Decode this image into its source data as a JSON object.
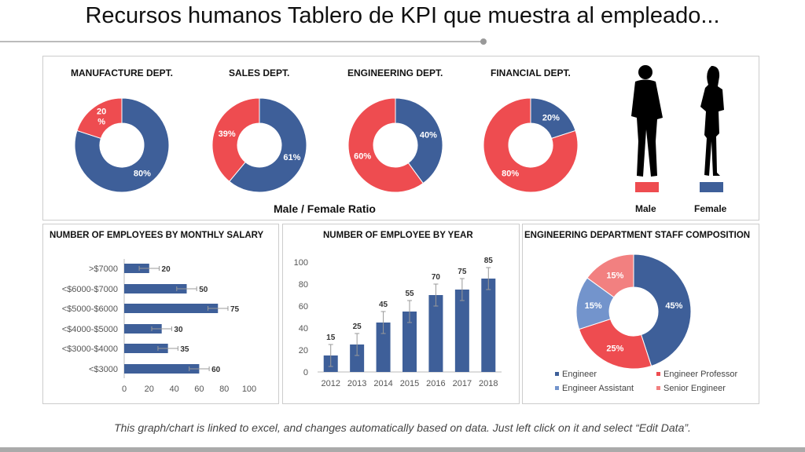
{
  "title": "Recursos humanos Tablero de KPI que muestra al empleado...",
  "footer": "This graph/chart is linked to excel, and changes automatically based on data. Just left click on it and select “Edit Data”.",
  "colors": {
    "male": "#3e5f99",
    "female": "#ee4c50",
    "assistant": "#7394cc",
    "senior": "#f28080"
  },
  "ratio": {
    "caption": "Male / Female Ratio",
    "legend": {
      "male": "Male",
      "female": "Female"
    },
    "icons": [
      "male-silhouette-icon",
      "female-silhouette-icon"
    ]
  },
  "chart_data": [
    {
      "type": "pie",
      "title": "MANUFACTURE DEPT.",
      "donut": true,
      "slices": [
        {
          "key": "male",
          "value": 80,
          "label": "80%"
        },
        {
          "key": "female",
          "value": 20,
          "label": "20 %"
        }
      ]
    },
    {
      "type": "pie",
      "title": "SALES DEPT.",
      "donut": true,
      "slices": [
        {
          "key": "male",
          "value": 61,
          "label": "61%"
        },
        {
          "key": "female",
          "value": 39,
          "label": "39%"
        }
      ]
    },
    {
      "type": "pie",
      "title": "ENGINEERING DEPT.",
      "donut": true,
      "slices": [
        {
          "key": "male",
          "value": 40,
          "label": "40%"
        },
        {
          "key": "female",
          "value": 60,
          "label": "60%"
        }
      ]
    },
    {
      "type": "pie",
      "title": "FINANCIAL DEPT.",
      "donut": true,
      "slices": [
        {
          "key": "male",
          "value": 20,
          "label": "20%"
        },
        {
          "key": "female",
          "value": 80,
          "label": "80%"
        }
      ]
    },
    {
      "type": "bar",
      "orientation": "horizontal",
      "title": "NUMBER OF EMPLOYEES BY MONTHLY SALARY",
      "categories": [
        ">$7000",
        "<$6000-$7000",
        "<$5000-$6000",
        "<$4000-$5000",
        "<$3000-$4000",
        "<$3000"
      ],
      "values": [
        20,
        50,
        75,
        30,
        35,
        60
      ],
      "error": 8,
      "xlim": [
        0,
        100
      ],
      "xticks": [
        0,
        20,
        40,
        60,
        80,
        100
      ],
      "grid": false
    },
    {
      "type": "bar",
      "title": "NUMBER OF EMPLOYEE BY YEAR",
      "categories": [
        "2012",
        "2013",
        "2014",
        "2015",
        "2016",
        "2017",
        "2018"
      ],
      "values": [
        15,
        25,
        45,
        55,
        70,
        75,
        85
      ],
      "error": 10,
      "ylim": [
        0,
        100
      ],
      "yticks": [
        0,
        20,
        40,
        60,
        80,
        100
      ],
      "grid": false
    },
    {
      "type": "pie",
      "title": "ENGINEERING DEPARTMENT STAFF COMPOSITION",
      "donut": true,
      "legend": "bottom",
      "slices": [
        {
          "name": "Engineer",
          "key": "male",
          "value": 45,
          "label": "45%"
        },
        {
          "name": "Engineer Professor",
          "key": "female",
          "value": 25,
          "label": "25%"
        },
        {
          "name": "Engineer Assistant",
          "key": "assistant",
          "value": 15,
          "label": "15%"
        },
        {
          "name": "Senior Engineer",
          "key": "senior",
          "value": 15,
          "label": "15%"
        }
      ]
    }
  ]
}
